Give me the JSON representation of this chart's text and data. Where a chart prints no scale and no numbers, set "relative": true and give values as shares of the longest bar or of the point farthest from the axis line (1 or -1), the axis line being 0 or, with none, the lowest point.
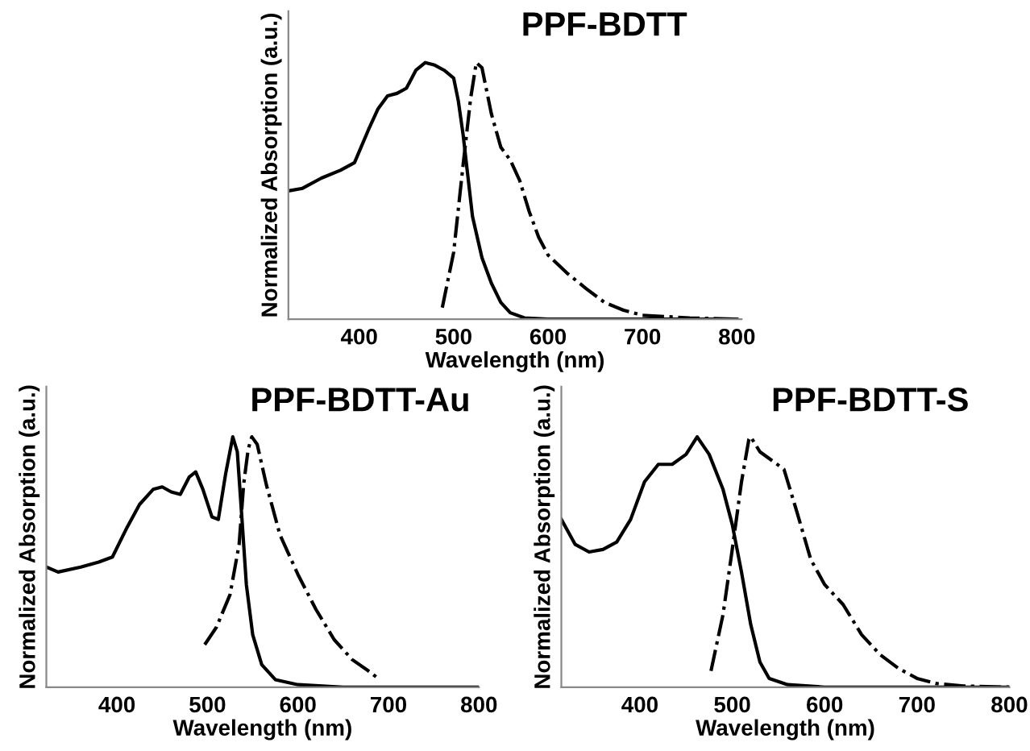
{
  "chart_data": [
    {
      "type": "line",
      "title": "PPF-BDTT",
      "xlabel": "Wavelength (nm)",
      "ylabel": "Normalized Absorption (a.u.)",
      "relative": true,
      "xlim": [
        325,
        805
      ],
      "xticks": [
        400,
        500,
        600,
        700,
        800
      ],
      "grid": false,
      "legend": false,
      "marker": "none",
      "series": [
        {
          "color": "#000000",
          "line_style": "solid",
          "x": [
            325,
            340,
            360,
            380,
            395,
            410,
            420,
            430,
            440,
            450,
            460,
            470,
            480,
            490,
            500,
            505,
            510,
            515,
            520,
            530,
            540,
            550,
            560,
            575,
            600,
            700,
            800
          ],
          "values": [
            0.5,
            0.51,
            0.55,
            0.58,
            0.61,
            0.74,
            0.82,
            0.87,
            0.88,
            0.9,
            0.97,
            1.0,
            0.99,
            0.97,
            0.94,
            0.85,
            0.72,
            0.56,
            0.4,
            0.24,
            0.14,
            0.065,
            0.025,
            0.005,
            0,
            0,
            0
          ]
        },
        {
          "color": "#000000",
          "line_style": "dashdot",
          "x": [
            488,
            500,
            510,
            518,
            524,
            530,
            540,
            550,
            560,
            570,
            580,
            590,
            600,
            620,
            640,
            660,
            680,
            700,
            750,
            800
          ],
          "values": [
            0.045,
            0.26,
            0.6,
            0.86,
            1.0,
            0.98,
            0.8,
            0.67,
            0.62,
            0.54,
            0.42,
            0.32,
            0.25,
            0.18,
            0.12,
            0.065,
            0.035,
            0.015,
            0.005,
            0
          ]
        }
      ]
    },
    {
      "type": "line",
      "title": "PPF-BDTT-Au",
      "xlabel": "Wavelength (nm)",
      "ylabel": "Normalized Absorption (a.u.)",
      "relative": true,
      "xlim": [
        322,
        800
      ],
      "xticks": [
        400,
        500,
        600,
        700,
        800
      ],
      "grid": false,
      "legend": false,
      "marker": "none",
      "series": [
        {
          "color": "#000000",
          "line_style": "solid",
          "x": [
            322,
            335,
            360,
            380,
            395,
            410,
            425,
            440,
            450,
            460,
            470,
            480,
            487,
            495,
            505,
            512,
            520,
            528,
            533,
            538,
            543,
            550,
            560,
            575,
            600,
            650,
            800
          ],
          "values": [
            0.48,
            0.46,
            0.48,
            0.5,
            0.52,
            0.63,
            0.73,
            0.79,
            0.8,
            0.78,
            0.77,
            0.84,
            0.86,
            0.79,
            0.68,
            0.67,
            0.85,
            1.0,
            0.94,
            0.68,
            0.41,
            0.21,
            0.09,
            0.03,
            0.01,
            0,
            0
          ]
        },
        {
          "color": "#000000",
          "line_style": "dashdot",
          "x": [
            497,
            510,
            525,
            535,
            540,
            545,
            549,
            555,
            565,
            580,
            600,
            620,
            640,
            660,
            680,
            690
          ],
          "values": [
            0.17,
            0.24,
            0.37,
            0.57,
            0.81,
            0.95,
            1.0,
            0.97,
            0.81,
            0.61,
            0.45,
            0.31,
            0.19,
            0.11,
            0.06,
            0.03
          ]
        }
      ]
    },
    {
      "type": "line",
      "title": "PPF-BDTT-S",
      "xlabel": "Wavelength (nm)",
      "ylabel": "Normalized Absorption (a.u.)",
      "relative": true,
      "xlim": [
        315,
        800
      ],
      "xticks": [
        400,
        500,
        600,
        700,
        800
      ],
      "grid": false,
      "legend": false,
      "marker": "none",
      "series": [
        {
          "color": "#000000",
          "line_style": "solid",
          "x": [
            315,
            330,
            345,
            360,
            375,
            390,
            405,
            420,
            435,
            450,
            462,
            475,
            490,
            500,
            510,
            520,
            530,
            540,
            560,
            600,
            800
          ],
          "values": [
            0.67,
            0.57,
            0.54,
            0.55,
            0.58,
            0.67,
            0.82,
            0.89,
            0.89,
            0.93,
            1.0,
            0.93,
            0.79,
            0.65,
            0.46,
            0.25,
            0.1,
            0.035,
            0.01,
            0,
            0
          ]
        },
        {
          "color": "#000000",
          "line_style": "dashdot",
          "x": [
            477,
            490,
            500,
            510,
            518,
            520,
            530,
            545,
            556,
            570,
            585,
            600,
            620,
            640,
            660,
            680,
            700,
            720,
            750,
            800
          ],
          "values": [
            0.065,
            0.29,
            0.55,
            0.82,
            0.99,
            1.0,
            0.94,
            0.9,
            0.87,
            0.7,
            0.51,
            0.41,
            0.33,
            0.21,
            0.13,
            0.075,
            0.035,
            0.015,
            0.005,
            0
          ]
        }
      ]
    }
  ]
}
